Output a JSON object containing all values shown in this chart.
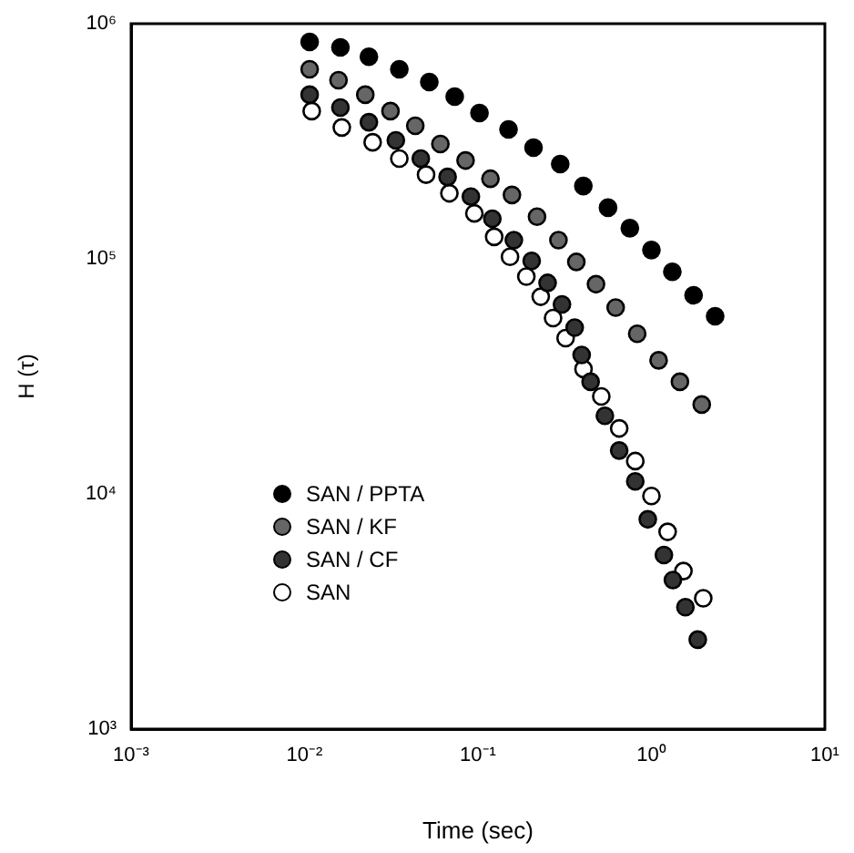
{
  "chart_data": {
    "type": "scatter",
    "xlabel": "Time (sec)",
    "ylabel": "H (τ)",
    "log": "xy",
    "grid": false,
    "legend": "bottom left",
    "marker": "circle",
    "xlim": [
      0.001,
      10
    ],
    "ylim": [
      1000,
      1000000
    ],
    "xticks": [
      {
        "value": 0.001,
        "label": "10⁻³"
      },
      {
        "value": 0.01,
        "label": "10⁻²"
      },
      {
        "value": 0.1,
        "label": "10⁻¹"
      },
      {
        "value": 1,
        "label": "10⁰"
      },
      {
        "value": 10,
        "label": "10¹"
      }
    ],
    "yticks": [
      {
        "value": 1000,
        "label": "10³"
      },
      {
        "value": 10000,
        "label": "10⁴"
      },
      {
        "value": 100000,
        "label": "10⁵"
      },
      {
        "value": 1000000,
        "label": "10⁶"
      }
    ],
    "series": [
      {
        "name": "SAN / PPTA",
        "color": "#000000",
        "x": [
          0.0107,
          0.0161,
          0.0235,
          0.0352,
          0.0524,
          0.0734,
          0.102,
          0.15,
          0.209,
          0.298,
          0.405,
          0.562,
          0.751,
          1.0,
          1.32,
          1.75,
          2.33
        ],
        "values": [
          836000,
          793000,
          724000,
          640000,
          565000,
          490000,
          417000,
          355000,
          297000,
          253000,
          204000,
          165000,
          135000,
          109000,
          88000,
          70000,
          57000
        ]
      },
      {
        "name": "SAN / KF",
        "color": "#666666",
        "x": [
          0.0107,
          0.0157,
          0.0224,
          0.0313,
          0.0435,
          0.0607,
          0.0848,
          0.118,
          0.157,
          0.219,
          0.291,
          0.369,
          0.479,
          0.622,
          0.828,
          1.1,
          1.46,
          1.95
        ],
        "values": [
          640000,
          575000,
          499000,
          425000,
          368000,
          308000,
          262000,
          219000,
          187000,
          151000,
          120000,
          97000,
          78000,
          62000,
          48000,
          37000,
          30000,
          24000
        ]
      },
      {
        "name": "SAN / CF",
        "color": "#333333",
        "x": [
          0.0107,
          0.0161,
          0.0235,
          0.0336,
          0.0468,
          0.0668,
          0.091,
          0.121,
          0.161,
          0.204,
          0.252,
          0.305,
          0.361,
          0.396,
          0.446,
          0.539,
          0.652,
          0.807,
          0.953,
          1.18,
          1.33,
          1.57,
          1.85
        ],
        "values": [
          499000,
          440000,
          381000,
          319000,
          267000,
          223000,
          184000,
          148000,
          120000,
          98000,
          79000,
          64000,
          51000,
          39000,
          30000,
          21500,
          15300,
          11300,
          7800,
          5500,
          4300,
          3300,
          2400
        ]
      },
      {
        "name": "SAN",
        "color": "#ffffff",
        "x": [
          0.011,
          0.0164,
          0.0247,
          0.0352,
          0.0502,
          0.0684,
          0.0953,
          0.124,
          0.153,
          0.19,
          0.23,
          0.271,
          0.32,
          0.406,
          0.514,
          0.652,
          0.807,
          1.0,
          1.24,
          1.53,
          1.99
        ],
        "values": [
          425000,
          362000,
          313000,
          267000,
          228000,
          190000,
          156000,
          124000,
          102000,
          84000,
          69000,
          56000,
          46000,
          34000,
          26000,
          19000,
          13800,
          9800,
          6900,
          4700,
          3600
        ]
      }
    ]
  }
}
